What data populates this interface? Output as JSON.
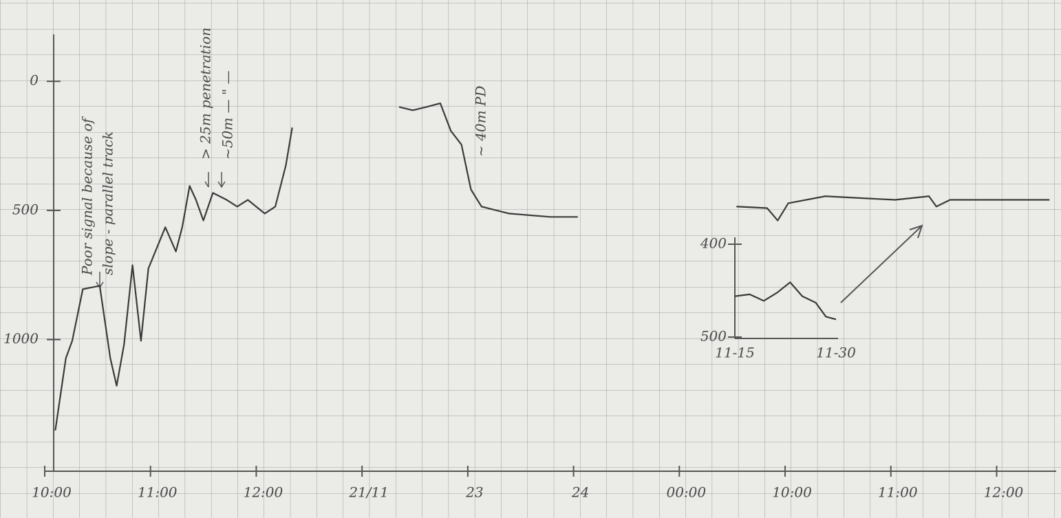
{
  "chart_data": [
    {
      "type": "line",
      "ylim": [
        1510,
        -315
      ],
      "yticks": [
        0,
        500,
        1000
      ],
      "xlim": [
        0,
        9.55
      ],
      "xticks": [
        {
          "value": 0,
          "label": "10:00"
        },
        {
          "value": 1,
          "label": "11:00"
        },
        {
          "value": 2,
          "label": "12:00"
        },
        {
          "value": 3,
          "label": "21/11"
        },
        {
          "value": 4,
          "label": "23"
        },
        {
          "value": 5,
          "label": "24"
        },
        {
          "value": 6,
          "label": "00:00"
        },
        {
          "value": 7,
          "label": "10:00"
        },
        {
          "value": 8,
          "label": "11:00"
        },
        {
          "value": 9,
          "label": "12:00"
        }
      ],
      "x": [
        0.1,
        0.2,
        0.26,
        0.36,
        0.52,
        0.62,
        0.68,
        0.75,
        0.83,
        0.91,
        0.98,
        1.14,
        1.24,
        1.3,
        1.37,
        1.43,
        1.5,
        1.59,
        1.72,
        1.82,
        1.92,
        2.08,
        2.18,
        2.28,
        2.34,
        null,
        3.35,
        3.48,
        3.61,
        3.74,
        3.84,
        3.94,
        4.03,
        4.13,
        4.39,
        4.78,
        5.04,
        null,
        6.54,
        6.83,
        6.93,
        7.03,
        7.38,
        8.04,
        8.36,
        8.43,
        8.56,
        9.01,
        9.5
      ],
      "series": [
        {
          "color": "#3a3a3a",
          "values": [
            1352,
            1072,
            1005,
            805,
            792,
            1072,
            1179,
            1019,
            712,
            1005,
            725,
            565,
            659,
            565,
            405,
            459,
            539,
            432,
            459,
            485,
            459,
            512,
            485,
            325,
            179,
            null,
            99,
            112,
            99,
            85,
            192,
            245,
            419,
            485,
            512,
            525,
            525,
            null,
            485,
            491,
            539,
            472,
            445,
            459,
            445,
            485,
            459,
            459,
            459
          ]
        }
      ],
      "annotations": [
        "Poor signal because of",
        "slope - parallel track",
        "> 25m penetration",
        "~50m — \" —",
        "~ 40m PD"
      ]
    },
    {
      "type": "line",
      "ylim": [
        500,
        400
      ],
      "yticks": [
        400,
        500
      ],
      "xlim": [
        15,
        30
      ],
      "xticks": [
        {
          "value": 15,
          "label": "11-15"
        },
        {
          "value": 30,
          "label": "11-30"
        }
      ],
      "x": [
        15,
        17.2,
        19.3,
        21.3,
        23.2,
        25,
        27,
        28.5,
        30
      ],
      "series": [
        {
          "color": "#3a3a3a",
          "values": [
            456,
            454,
            461,
            452,
            441,
            456,
            463,
            478,
            481
          ]
        }
      ]
    }
  ]
}
